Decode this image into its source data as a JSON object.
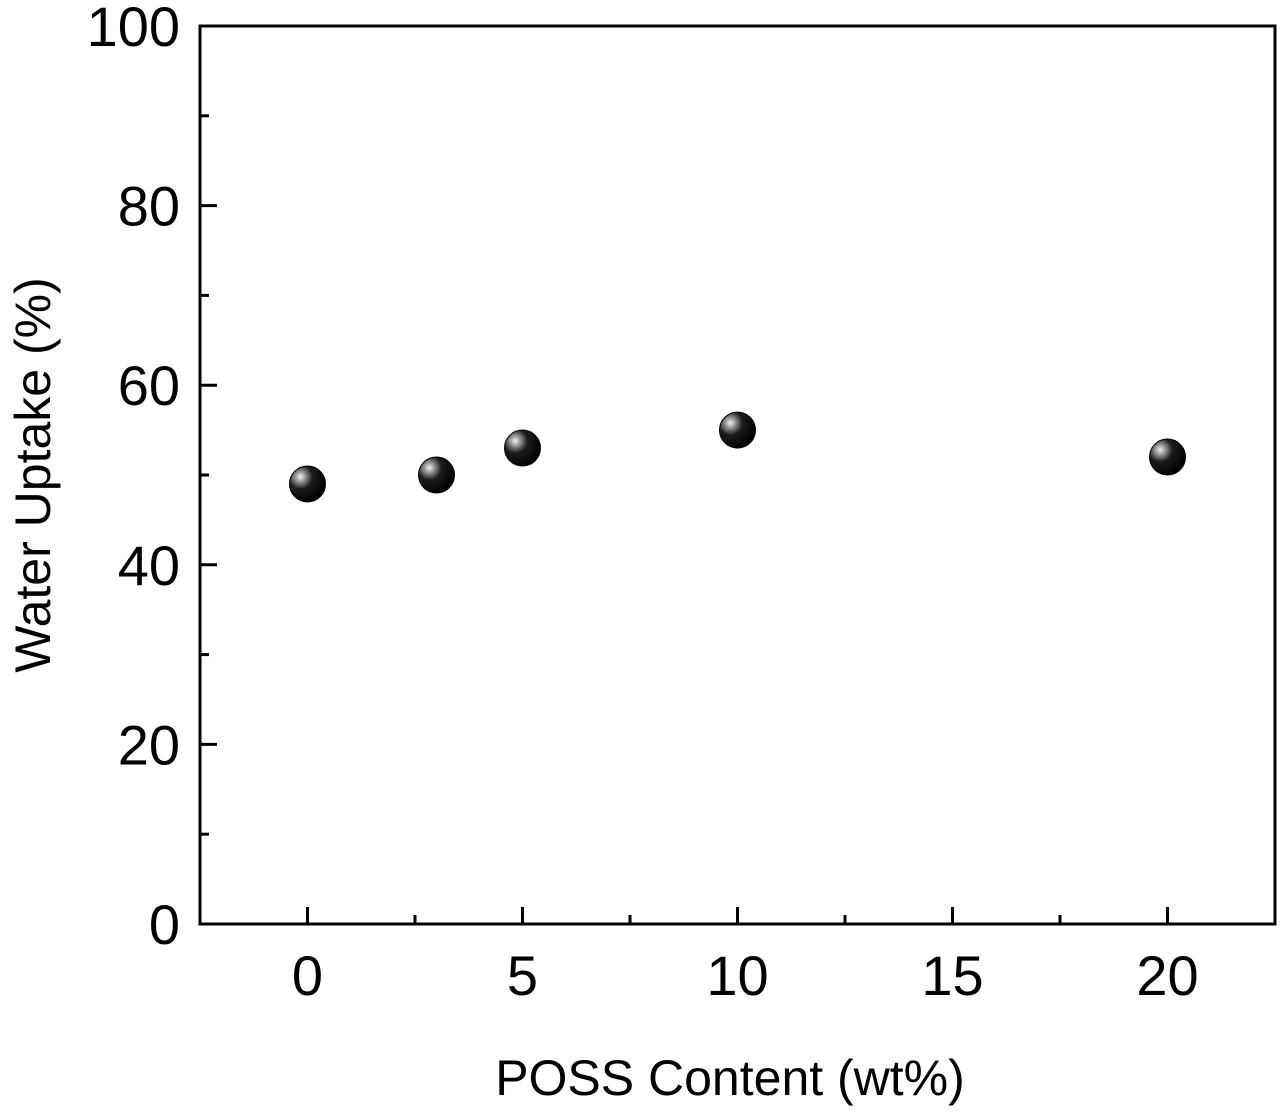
{
  "chart_data": {
    "type": "scatter",
    "title": "",
    "xlabel": "POSS Content (wt%)",
    "ylabel": "Water Uptake (%)",
    "xlim": [
      -2.5,
      22.5
    ],
    "ylim": [
      0,
      100
    ],
    "x_ticks": [
      0,
      5,
      10,
      15,
      20
    ],
    "x_tick_labels": [
      "0",
      "5",
      "10",
      "15",
      "20"
    ],
    "y_ticks": [
      0,
      20,
      40,
      60,
      80,
      100
    ],
    "y_tick_labels": [
      "0",
      "20",
      "40",
      "60",
      "80",
      "100"
    ],
    "grid": false,
    "legend": "none",
    "marker_color": "#000000",
    "series": [
      {
        "x": [
          0,
          3,
          5,
          10,
          20
        ],
        "values": [
          49,
          50,
          53,
          55,
          52
        ]
      }
    ]
  }
}
